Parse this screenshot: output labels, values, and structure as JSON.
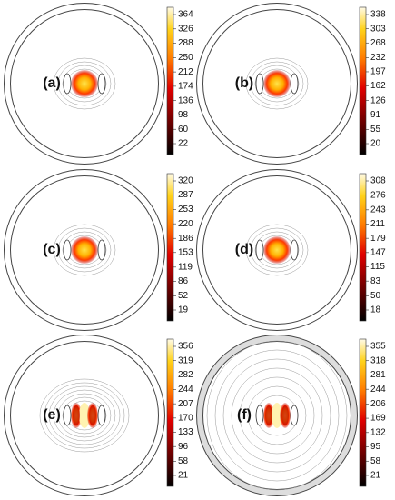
{
  "panels": [
    {
      "label": "(a)",
      "colorbar_ticks": [
        364,
        326,
        288,
        250,
        212,
        174,
        136,
        98,
        60,
        22
      ]
    },
    {
      "label": "(b)",
      "colorbar_ticks": [
        338,
        303,
        268,
        232,
        197,
        162,
        126,
        91,
        55,
        20
      ]
    },
    {
      "label": "(c)",
      "colorbar_ticks": [
        320,
        287,
        253,
        220,
        186,
        153,
        119,
        86,
        52,
        19
      ]
    },
    {
      "label": "(d)",
      "colorbar_ticks": [
        308,
        276,
        243,
        211,
        179,
        147,
        115,
        83,
        50,
        18
      ]
    },
    {
      "label": "(e)",
      "colorbar_ticks": [
        356,
        319,
        282,
        244,
        207,
        170,
        133,
        96,
        58,
        21
      ]
    },
    {
      "label": "(f)",
      "colorbar_ticks": [
        355,
        318,
        281,
        244,
        206,
        169,
        132,
        95,
        58,
        21
      ]
    }
  ]
}
